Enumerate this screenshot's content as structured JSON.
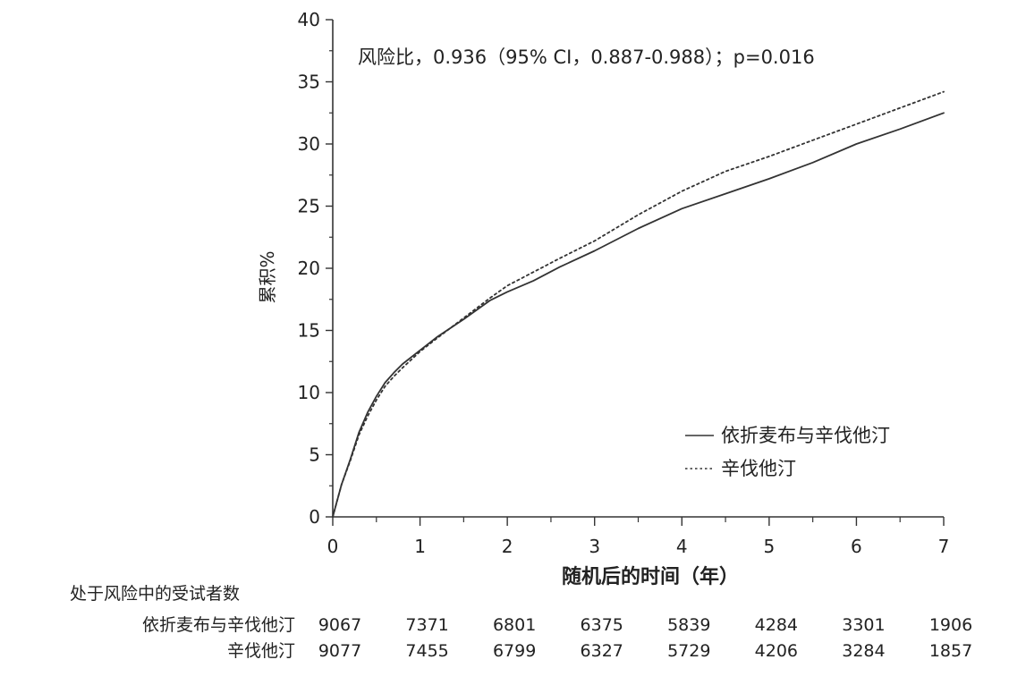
{
  "chart_data": {
    "type": "line",
    "title": "",
    "annotation": "风险比，0.936（95% CI，0.887-0.988）；p=0.016",
    "xlabel": "随机后的时间（年）",
    "ylabel": "累积%",
    "xlim": [
      0,
      7
    ],
    "ylim": [
      0,
      40
    ],
    "x_ticks": [
      0,
      1,
      2,
      3,
      4,
      5,
      6,
      7
    ],
    "y_ticks": [
      0,
      5,
      10,
      15,
      20,
      25,
      30,
      35,
      40
    ],
    "grid": false,
    "legend_position": "lower-right",
    "series": [
      {
        "name": "依折麦布与辛伐他汀",
        "style": "solid",
        "color": "#333333",
        "x": [
          0,
          0.05,
          0.1,
          0.2,
          0.3,
          0.4,
          0.5,
          0.6,
          0.7,
          0.8,
          1.0,
          1.2,
          1.5,
          1.8,
          2.0,
          2.3,
          2.6,
          3.0,
          3.5,
          4.0,
          4.5,
          5.0,
          5.5,
          6.0,
          6.5,
          7.0
        ],
        "y": [
          0,
          1.3,
          2.6,
          4.6,
          6.8,
          8.4,
          9.7,
          10.8,
          11.6,
          12.3,
          13.4,
          14.5,
          15.9,
          17.4,
          18.1,
          19.0,
          20.1,
          21.4,
          23.2,
          24.8,
          26.0,
          27.2,
          28.5,
          30.0,
          31.2,
          32.5
        ]
      },
      {
        "name": "辛伐他汀",
        "style": "dotted",
        "color": "#333333",
        "x": [
          0,
          0.05,
          0.1,
          0.2,
          0.3,
          0.4,
          0.5,
          0.6,
          0.7,
          0.8,
          1.0,
          1.2,
          1.5,
          1.8,
          2.0,
          2.3,
          2.6,
          3.0,
          3.5,
          4.0,
          4.5,
          5.0,
          5.5,
          6.0,
          6.5,
          7.0
        ],
        "y": [
          0,
          1.3,
          2.6,
          4.5,
          6.6,
          8.1,
          9.4,
          10.5,
          11.3,
          12.0,
          13.3,
          14.4,
          16.0,
          17.6,
          18.6,
          19.7,
          20.8,
          22.2,
          24.3,
          26.2,
          27.8,
          29.0,
          30.3,
          31.6,
          32.9,
          34.2
        ]
      }
    ]
  },
  "risk_table": {
    "title": "处于风险中的受试者数",
    "rows": [
      {
        "label": "依折麦布与辛伐他汀",
        "values": [
          "9067",
          "7371",
          "6801",
          "6375",
          "5839",
          "4284",
          "3301",
          "1906"
        ]
      },
      {
        "label": "辛伐他汀",
        "values": [
          "9077",
          "7455",
          "6799",
          "6327",
          "5729",
          "4206",
          "3284",
          "1857"
        ]
      }
    ]
  }
}
